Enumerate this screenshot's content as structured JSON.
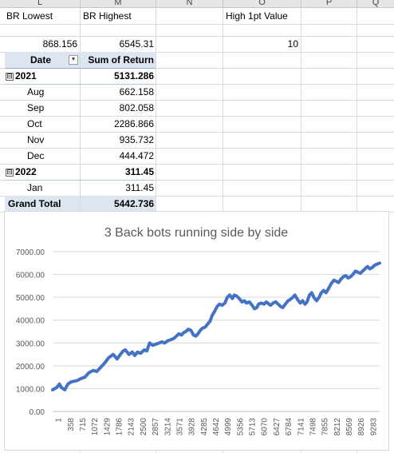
{
  "columns": [
    "L",
    "M",
    "N",
    "O",
    "P",
    "Q"
  ],
  "cells": {
    "br_lowest_label": "BR Lowest",
    "br_highest_label": "BR Highest",
    "high_1pt_label": "High 1pt Value",
    "br_lowest_value": "868.156",
    "br_highest_value": "6545.31",
    "high_1pt_value": "10"
  },
  "pivot": {
    "header_date": "Date",
    "header_sum": "Sum of Return",
    "rows": [
      {
        "label": "2021",
        "value": "5131.286",
        "type": "year"
      },
      {
        "label": "Aug",
        "value": "662.158",
        "type": "month"
      },
      {
        "label": "Sep",
        "value": "802.058",
        "type": "month"
      },
      {
        "label": "Oct",
        "value": "2286.866",
        "type": "month"
      },
      {
        "label": "Nov",
        "value": "935.732",
        "type": "month"
      },
      {
        "label": "Dec",
        "value": "444.472",
        "type": "month"
      },
      {
        "label": "2022",
        "value": "311.45",
        "type": "year"
      },
      {
        "label": "Jan",
        "value": "311.45",
        "type": "month"
      }
    ],
    "grand_total_label": "Grand Total",
    "grand_total_value": "5442.736",
    "collapse_glyph": "⊟",
    "dropdown_glyph": "▼"
  },
  "chart_data": {
    "type": "line",
    "title": "3 Back bots running side by side",
    "xlabel": "",
    "ylabel": "",
    "color": "#4472c4",
    "ylim": [
      0,
      7000
    ],
    "y_ticks": [
      "0.00",
      "1000.00",
      "2000.00",
      "3000.00",
      "4000.00",
      "5000.00",
      "6000.00",
      "7000.00"
    ],
    "x_ticks": [
      "1",
      "358",
      "715",
      "1072",
      "1429",
      "1786",
      "2143",
      "2500",
      "2857",
      "3214",
      "3571",
      "3928",
      "4285",
      "4642",
      "4999",
      "5356",
      "5713",
      "6070",
      "6427",
      "6784",
      "7141",
      "7498",
      "7855",
      "8212",
      "8569",
      "8926",
      "9283"
    ],
    "xlim": [
      1,
      9640
    ],
    "series": [
      {
        "x": [
          1,
          120,
          200,
          260,
          358,
          450,
          550,
          715,
          850,
          950,
          1072,
          1200,
          1300,
          1429,
          1550,
          1650,
          1786,
          1900,
          2000,
          2080,
          2143,
          2250,
          2350,
          2420,
          2500,
          2600,
          2700,
          2780,
          2857,
          2950,
          3050,
          3140,
          3214,
          3300,
          3400,
          3500,
          3571,
          3650,
          3720,
          3800,
          3860,
          3928,
          4000,
          4080,
          4150,
          4220,
          4285,
          4350,
          4420,
          4500,
          4580,
          4642,
          4700,
          4780,
          4850,
          4920,
          4999,
          5080,
          5150,
          5220,
          5300,
          5356,
          5430,
          5500,
          5580,
          5650,
          5713,
          5800,
          5880,
          5950,
          6020,
          6070,
          6150,
          6230,
          6300,
          6380,
          6427,
          6500,
          6580,
          6650,
          6720,
          6784,
          6860,
          6940,
          7000,
          7080,
          7141,
          7220,
          7300,
          7370,
          7440,
          7498,
          7570,
          7640,
          7700,
          7780,
          7855,
          7920,
          7990,
          8060,
          8140,
          8212,
          8290,
          8360,
          8430,
          8500,
          8569,
          8640,
          8710,
          8780,
          8850,
          8926,
          9000,
          9070,
          9140,
          9210,
          9283,
          9350,
          9420,
          9490,
          9560,
          9640
        ],
        "y": [
          950,
          1050,
          1200,
          1050,
          950,
          1200,
          1300,
          1350,
          1450,
          1500,
          1700,
          1800,
          1750,
          1950,
          2150,
          2350,
          2500,
          2300,
          2500,
          2650,
          2700,
          2500,
          2600,
          2450,
          2600,
          2550,
          2700,
          2650,
          3000,
          2900,
          2950,
          3000,
          3050,
          3000,
          3100,
          3150,
          3200,
          3300,
          3400,
          3350,
          3450,
          3500,
          3600,
          3550,
          3350,
          3300,
          3400,
          3550,
          3650,
          3700,
          3850,
          3950,
          4200,
          4400,
          4600,
          4700,
          4650,
          4750,
          5000,
          5100,
          4950,
          5100,
          5050,
          4950,
          4800,
          4850,
          4750,
          4800,
          4650,
          4500,
          4550,
          4700,
          4750,
          4700,
          4800,
          4700,
          4650,
          4750,
          4800,
          4700,
          4600,
          4550,
          4700,
          4850,
          4900,
          5000,
          5100,
          4900,
          4750,
          4850,
          4700,
          4800,
          5100,
          5200,
          5000,
          4850,
          5000,
          5200,
          5300,
          5200,
          5400,
          5600,
          5750,
          5700,
          5650,
          5800,
          5900,
          5950,
          5850,
          5900,
          6000,
          6150,
          6100,
          6050,
          6150,
          6250,
          6350,
          6250,
          6300,
          6400,
          6450,
          6500
        ]
      }
    ]
  }
}
